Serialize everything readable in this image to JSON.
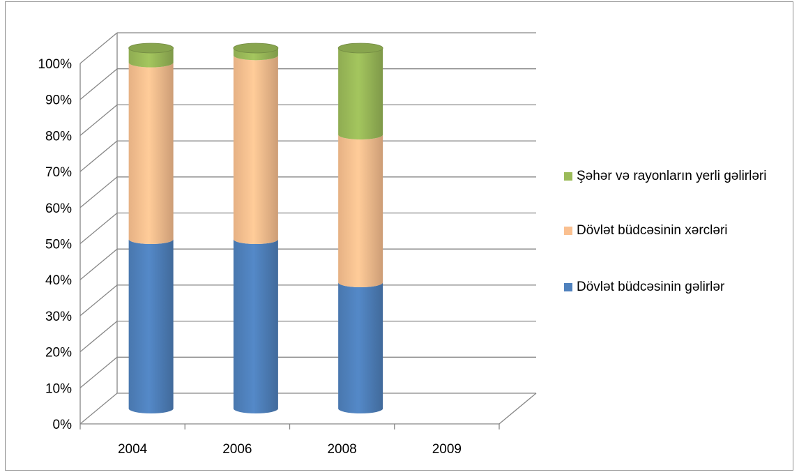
{
  "chart_data": {
    "type": "bar",
    "stacked": true,
    "percent_stacked": true,
    "style": "3d-cylinder",
    "categories": [
      "2004",
      "2006",
      "2008",
      "2009"
    ],
    "series": [
      {
        "name": "Dövlət büdcəsinin gəlirlər",
        "color": "#4F81BD",
        "values": [
          47,
          47,
          35,
          0
        ]
      },
      {
        "name": "Dövlət büdcəsinin xərcləri",
        "color": "#FAC090",
        "values": [
          49,
          51,
          41,
          0
        ]
      },
      {
        "name": "Şəhər və rayonların yerli gəlirləri",
        "color": "#9BBB59",
        "values": [
          4,
          2,
          24,
          0
        ]
      }
    ],
    "yticks": [
      "0%",
      "10%",
      "20%",
      "30%",
      "40%",
      "50%",
      "60%",
      "70%",
      "80%",
      "90%",
      "100%"
    ],
    "ylim": [
      0,
      100
    ],
    "grid": true,
    "legend_position": "right",
    "title": "",
    "xlabel": "",
    "ylabel": ""
  }
}
